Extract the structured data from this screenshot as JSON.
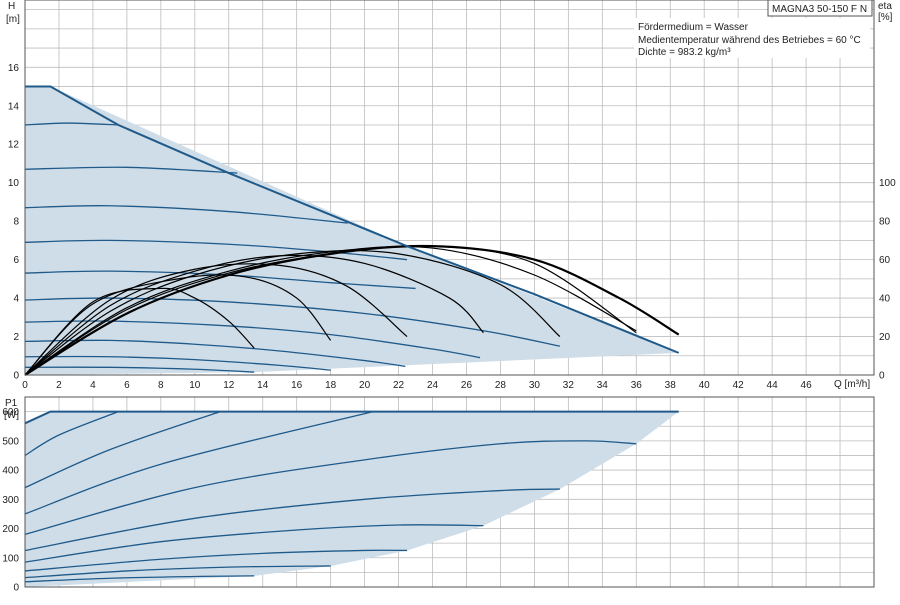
{
  "model_label": "MAGNA3 50-150 F N",
  "info": {
    "line1": "Fördermedium = Wasser",
    "line2": "Medientemperatur während des Betriebes = 60 °C",
    "line3": "Dichte = 983.2 kg/m³"
  },
  "top_chart": {
    "ylabel_main": "H",
    "ylabel_unit": "[m]",
    "right_label_main": "eta",
    "right_label_unit": "[%]",
    "xlabel": "Q [m³/h]"
  },
  "bottom_chart": {
    "ylabel_main": "P1",
    "ylabel_unit": "[W]"
  },
  "colors": {
    "curve": "#1f5a8a",
    "envelope_fill": "#cfdde8",
    "grid": "#bdbdbd",
    "eta": "#000000"
  },
  "chart_data": [
    {
      "type": "line",
      "x_ticks": [
        0,
        2,
        4,
        6,
        8,
        10,
        12,
        14,
        16,
        18,
        20,
        22,
        24,
        26,
        28,
        30,
        32,
        34,
        36,
        38,
        40,
        42,
        44,
        46
      ],
      "y_ticks": [
        0,
        2,
        4,
        6,
        8,
        10,
        12,
        14,
        16
      ],
      "y2_ticks": [
        0,
        20,
        40,
        60,
        80,
        100
      ],
      "xlim": [
        0,
        50
      ],
      "ylim": [
        0,
        19.5
      ],
      "y2lim": [
        0,
        195
      ],
      "grid": true,
      "envelope": {
        "x": [
          0,
          1.5,
          22.5,
          38.5,
          13.5,
          0
        ],
        "y": [
          15,
          15,
          6.7,
          1.15,
          0.15,
          0
        ]
      },
      "max_curve": {
        "x": [
          0,
          1.5,
          5.5,
          12,
          22.5,
          30,
          38.5
        ],
        "y": [
          15,
          15,
          13,
          10.5,
          6.7,
          4.2,
          1.15
        ]
      },
      "head_curves": [
        {
          "x": [
            0,
            2.5,
            5.5
          ],
          "y": [
            13.0,
            13.1,
            13.0
          ]
        },
        {
          "x": [
            0,
            6,
            12.5
          ],
          "y": [
            10.7,
            10.8,
            10.5
          ]
        },
        {
          "x": [
            0,
            5,
            12,
            19
          ],
          "y": [
            8.7,
            8.8,
            8.5,
            7.9
          ]
        },
        {
          "x": [
            0,
            5,
            12,
            18,
            22.5
          ],
          "y": [
            6.9,
            7.0,
            6.8,
            6.4,
            6.0
          ]
        },
        {
          "x": [
            0,
            5,
            12,
            18,
            23
          ],
          "y": [
            5.3,
            5.4,
            5.2,
            4.8,
            4.5
          ]
        },
        {
          "x": [
            0,
            5,
            12,
            20,
            27,
            31.5
          ],
          "y": [
            3.9,
            4.0,
            3.8,
            3.2,
            2.3,
            1.5
          ]
        },
        {
          "x": [
            0,
            5,
            12,
            18,
            24,
            26.8
          ],
          "y": [
            2.75,
            2.8,
            2.55,
            2.1,
            1.35,
            0.9
          ]
        },
        {
          "x": [
            0,
            5,
            10,
            15,
            20,
            22.4
          ],
          "y": [
            1.75,
            1.8,
            1.6,
            1.25,
            0.75,
            0.45
          ]
        },
        {
          "x": [
            0,
            5,
            10,
            15,
            18
          ],
          "y": [
            0.95,
            0.95,
            0.8,
            0.5,
            0.25
          ]
        },
        {
          "x": [
            0,
            5,
            10,
            13.5
          ],
          "y": [
            0.4,
            0.4,
            0.3,
            0.15
          ]
        }
      ],
      "eta_curves": [
        {
          "x": [
            0,
            4,
            8,
            10,
            12,
            13.5
          ],
          "y2": [
            0,
            38,
            45,
            40,
            28,
            14
          ]
        },
        {
          "x": [
            0,
            4,
            9,
            13,
            16,
            18
          ],
          "y2": [
            0,
            37,
            50,
            51,
            40,
            18
          ]
        },
        {
          "x": [
            0,
            5,
            10,
            15,
            19,
            22.5
          ],
          "y2": [
            0,
            39,
            55,
            57,
            46,
            20
          ]
        },
        {
          "x": [
            0,
            5,
            10,
            15,
            20,
            25,
            27
          ],
          "y2": [
            0,
            36,
            54,
            62,
            58,
            40,
            22
          ]
        },
        {
          "x": [
            0,
            5,
            10,
            16,
            22,
            28,
            31.5
          ],
          "y2": [
            0,
            33,
            52,
            63,
            63,
            47,
            20
          ]
        },
        {
          "x": [
            0,
            6,
            12,
            18,
            24,
            30,
            36
          ],
          "y2": [
            0,
            35,
            54,
            64,
            66,
            52,
            23
          ]
        },
        {
          "x": [
            0,
            6,
            12,
            18,
            24,
            30,
            36
          ],
          "y2": [
            0,
            34,
            53,
            63,
            67,
            58,
            22
          ]
        }
      ],
      "eta_max_curve": {
        "x": [
          0,
          6,
          12,
          18,
          24,
          30,
          35,
          38.5
        ],
        "y2": [
          0,
          32,
          52,
          63,
          67,
          60,
          40,
          21
        ]
      }
    },
    {
      "type": "line",
      "x_ticks": [
        0,
        2,
        4,
        6,
        8,
        10,
        12,
        14,
        16,
        18,
        20,
        22,
        24,
        26,
        28,
        30,
        32,
        34,
        36,
        38,
        40,
        42,
        44,
        46
      ],
      "y_ticks": [
        0,
        100,
        200,
        300,
        400,
        500,
        600
      ],
      "xlim": [
        0,
        50
      ],
      "ylim": [
        0,
        650
      ],
      "grid": true,
      "envelope": {
        "x": [
          0,
          1.5,
          38.5,
          36,
          31.5,
          27,
          22.5,
          18,
          13.5,
          0
        ],
        "y": [
          560,
          600,
          600,
          490,
          335,
          210,
          125,
          72,
          38,
          0
        ]
      },
      "max_curve": {
        "x": [
          0,
          1.5,
          38.5
        ],
        "y": [
          560,
          600,
          600
        ]
      },
      "power_curves": [
        {
          "x": [
            0,
            2,
            5.5
          ],
          "y": [
            450,
            520,
            600
          ]
        },
        {
          "x": [
            0,
            5,
            11.5
          ],
          "y": [
            340,
            470,
            600
          ]
        },
        {
          "x": [
            0,
            8,
            20.5
          ],
          "y": [
            250,
            420,
            600
          ]
        },
        {
          "x": [
            0,
            10,
            20,
            28,
            33,
            36
          ],
          "y": [
            180,
            340,
            435,
            490,
            500,
            490
          ]
        },
        {
          "x": [
            0,
            10,
            20,
            28,
            31.5
          ],
          "y": [
            125,
            235,
            300,
            330,
            335
          ]
        },
        {
          "x": [
            0,
            8,
            16,
            22,
            27
          ],
          "y": [
            85,
            155,
            195,
            212,
            210
          ]
        },
        {
          "x": [
            0,
            8,
            14,
            20,
            22.5
          ],
          "y": [
            55,
            95,
            115,
            125,
            125
          ]
        },
        {
          "x": [
            0,
            6,
            12,
            18
          ],
          "y": [
            32,
            55,
            68,
            72
          ]
        },
        {
          "x": [
            0,
            5,
            10,
            13.5
          ],
          "y": [
            18,
            30,
            36,
            38
          ]
        }
      ]
    }
  ]
}
